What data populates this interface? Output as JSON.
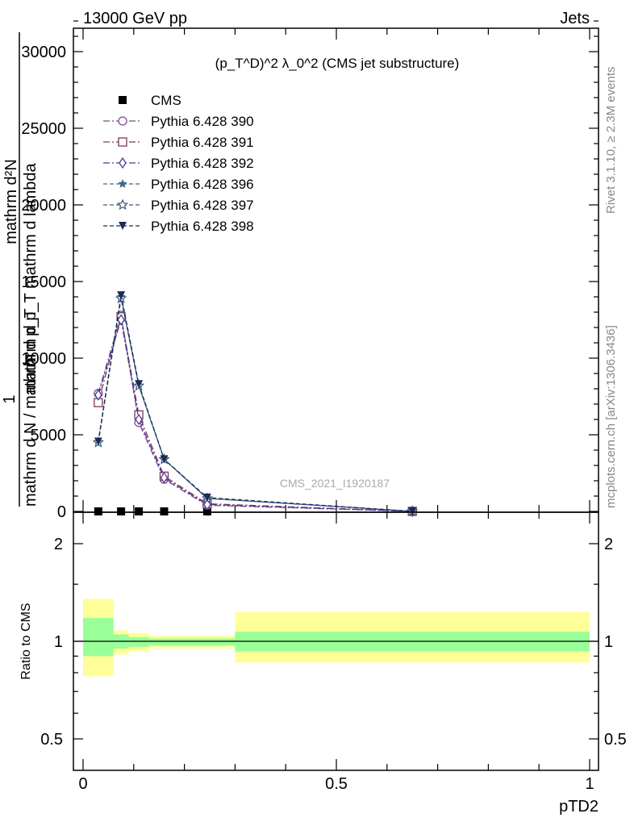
{
  "header": {
    "energy_label": "13000 GeV pp",
    "process_label": "Jets"
  },
  "side_labels": {
    "rivet": "Rivet 3.1.10, ≥ 2.3M events",
    "mcplots": "mcplots.cern.ch [arXiv:1306.3436]"
  },
  "watermark": "CMS_2021_I1920187",
  "colors": {
    "cms": "#000000",
    "p390": "#7a4a8a",
    "p391": "#7a3a5a",
    "p392": "#4a3a9a",
    "p396": "#3a6a8a",
    "p397": "#3a5a7a",
    "p398": "#1a2a5a",
    "band_yellow": "#ffff99",
    "band_green": "#99ff99"
  },
  "chart_data": [
    {
      "type": "line",
      "title": "(p_T^D)^2 λ_0^2 (CMS jet substructure)",
      "ylabel": "1 / mathrm d N / mathrm d p_T mathrm d p_T mathrm d^2N / mathrm d lambda",
      "xlabel": "",
      "xlim": [
        0,
        1
      ],
      "ylim": [
        0,
        32000
      ],
      "yticks": [
        0,
        5000,
        10000,
        15000,
        20000,
        25000,
        30000
      ],
      "ytick_labels": [
        "0",
        "5000",
        "10000",
        "15000",
        "20000",
        "25000",
        "30000"
      ],
      "x": [
        0.03,
        0.075,
        0.11,
        0.16,
        0.245,
        0.65
      ],
      "series": [
        {
          "name": "CMS",
          "marker": "square",
          "values": [
            10,
            30,
            25,
            10,
            5,
            0
          ]
        },
        {
          "name": "Pythia 6.428 390",
          "marker": "circle-open",
          "values": [
            7700,
            12800,
            5800,
            2100,
            400,
            5
          ]
        },
        {
          "name": "Pythia 6.428 391",
          "marker": "square-open",
          "values": [
            7100,
            12700,
            6300,
            2300,
            500,
            5
          ]
        },
        {
          "name": "Pythia 6.428 392",
          "marker": "diamond-open",
          "values": [
            7600,
            12500,
            6000,
            2200,
            450,
            5
          ]
        },
        {
          "name": "Pythia 6.428 396",
          "marker": "star",
          "values": [
            4500,
            14000,
            8200,
            3400,
            850,
            5
          ]
        },
        {
          "name": "Pythia 6.428 397",
          "marker": "star-open",
          "values": [
            4500,
            13900,
            8200,
            3400,
            850,
            5
          ]
        },
        {
          "name": "Pythia 6.428 398",
          "marker": "triangle-down",
          "values": [
            4550,
            14100,
            8300,
            3400,
            900,
            5
          ]
        }
      ],
      "legend_position": "top-left"
    },
    {
      "type": "area",
      "ylabel": "Ratio to CMS",
      "xlabel": "pTD2",
      "xlim": [
        0,
        1
      ],
      "xticks": [
        0,
        0.5,
        1
      ],
      "xtick_labels": [
        "0",
        "0.5",
        "1"
      ],
      "ylim": [
        0.4,
        2.3
      ],
      "yticks": [
        0.5,
        1,
        2
      ],
      "ytick_labels": [
        "0.5",
        "1",
        "2"
      ],
      "bins": [
        {
          "x0": 0.0,
          "x1": 0.06,
          "yellow": [
            0.78,
            1.35
          ],
          "green": [
            0.9,
            1.18
          ]
        },
        {
          "x0": 0.06,
          "x1": 0.09,
          "yellow": [
            0.91,
            1.08
          ],
          "green": [
            0.95,
            1.05
          ]
        },
        {
          "x0": 0.09,
          "x1": 0.13,
          "yellow": [
            0.93,
            1.06
          ],
          "green": [
            0.96,
            1.03
          ]
        },
        {
          "x0": 0.13,
          "x1": 0.3,
          "yellow": [
            0.95,
            1.04
          ],
          "green": [
            0.97,
            1.02
          ]
        },
        {
          "x0": 0.3,
          "x1": 1.0,
          "yellow": [
            0.86,
            1.23
          ],
          "green": [
            0.93,
            1.07
          ]
        }
      ]
    }
  ]
}
